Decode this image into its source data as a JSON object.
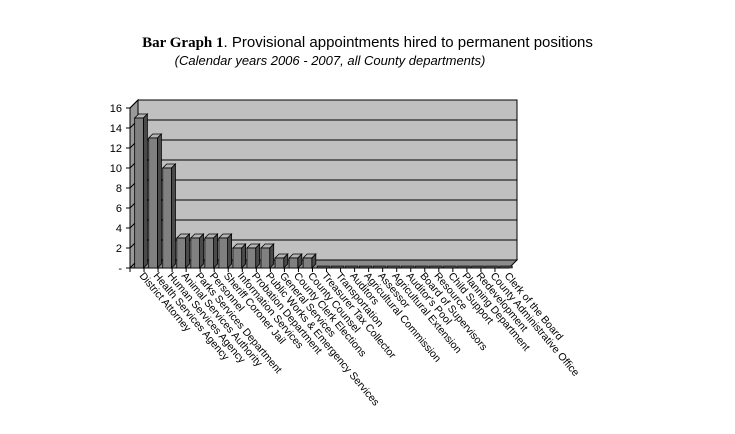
{
  "title_lead": "Bar Graph 1",
  "title_rest": ". Provisional appointments hired to permanent positions",
  "subtitle": "(Calendar years 2006 - 2007, all County departments)",
  "chart_data": {
    "type": "bar",
    "title": "Bar Graph 1. Provisional appointments hired to permanent positions",
    "subtitle": "(Calendar years 2006 - 2007, all County departments)",
    "xlabel": "",
    "ylabel": "",
    "ylim": [
      0,
      16
    ],
    "yticks": [
      0,
      2,
      4,
      6,
      8,
      10,
      12,
      14,
      16
    ],
    "ytick_labels": [
      "-",
      "2",
      "4",
      "6",
      "8",
      "10",
      "12",
      "14",
      "16"
    ],
    "grid": true,
    "legend": "none",
    "categories": [
      "District Attorney",
      "Health Services Agency",
      "Human Services Agency",
      "Animal Services Authority",
      "Parks Services Department",
      "Personnel",
      "Sheriff Coroner Jail",
      "Information Services",
      "Probation Department",
      "Public Works & Emergency Services",
      "General Services",
      "County Clerk Elections",
      "County Counsel",
      "Treasurer Tax Collector",
      "Transportation",
      "Auditors",
      "Agricultural Commission",
      "Assessor",
      "Agricultural Extension",
      "Auditor's Pool",
      "Board of Supervisors",
      "Resource",
      "Child Support",
      "Planning Department",
      "Redevelopment",
      "County Administrative Office",
      "Clerk of the Board"
    ],
    "values": [
      15,
      13,
      10,
      3,
      3,
      3,
      3,
      2,
      2,
      2,
      1,
      1,
      1,
      0,
      0,
      0,
      0,
      0,
      0,
      0,
      0,
      0,
      0,
      0,
      0,
      0,
      0
    ],
    "colors": {
      "plot_background": "#c0c0c0",
      "bar_front": "#808080",
      "bar_side": "#4a4a4a",
      "bar_top": "#b4b4b4",
      "gridline": "#000000"
    }
  }
}
